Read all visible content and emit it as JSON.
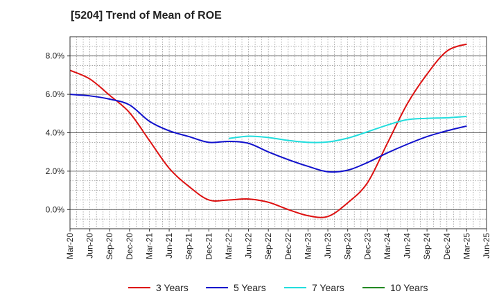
{
  "chart_data": {
    "type": "line",
    "title": "[5204]  Trend of Mean of ROE",
    "xlabel": "",
    "ylabel": "",
    "x": [
      "Mar-20",
      "Jun-20",
      "Sep-20",
      "Dec-20",
      "Mar-21",
      "Jun-21",
      "Sep-21",
      "Dec-21",
      "Mar-22",
      "Jun-22",
      "Sep-22",
      "Dec-22",
      "Mar-23",
      "Jun-23",
      "Sep-23",
      "Dec-23",
      "Mar-24",
      "Jun-24",
      "Sep-24",
      "Dec-24",
      "Mar-25",
      "Jun-25"
    ],
    "y_ticks": [
      "0.0%",
      "2.0%",
      "4.0%",
      "6.0%",
      "8.0%"
    ],
    "ylim": [
      -1.0,
      9.0
    ],
    "grid": true,
    "legend_position": "bottom",
    "series": [
      {
        "name": "3 Years",
        "color": "#dd1111",
        "values": [
          7.25,
          6.8,
          5.95,
          5.05,
          3.6,
          2.15,
          1.2,
          0.5,
          0.5,
          0.55,
          0.38,
          0.0,
          -0.32,
          -0.36,
          0.35,
          1.4,
          3.45,
          5.5,
          7.05,
          8.25,
          8.62,
          null
        ]
      },
      {
        "name": "5 Years",
        "color": "#1111cc",
        "values": [
          6.0,
          5.92,
          5.75,
          5.45,
          4.6,
          4.1,
          3.8,
          3.5,
          3.55,
          3.45,
          3.0,
          2.6,
          2.25,
          1.97,
          2.05,
          2.45,
          2.95,
          3.4,
          3.8,
          4.1,
          4.35,
          null
        ]
      },
      {
        "name": "7 Years",
        "color": "#22dddd",
        "values": [
          null,
          null,
          null,
          null,
          null,
          null,
          null,
          null,
          3.7,
          3.82,
          3.75,
          3.6,
          3.5,
          3.52,
          3.72,
          4.05,
          4.4,
          4.68,
          4.75,
          4.78,
          4.85,
          null
        ]
      },
      {
        "name": "10 Years",
        "color": "#228822",
        "values": [
          null,
          null,
          null,
          null,
          null,
          null,
          null,
          null,
          null,
          null,
          null,
          null,
          null,
          null,
          null,
          null,
          null,
          null,
          null,
          null,
          null,
          null
        ]
      }
    ]
  }
}
